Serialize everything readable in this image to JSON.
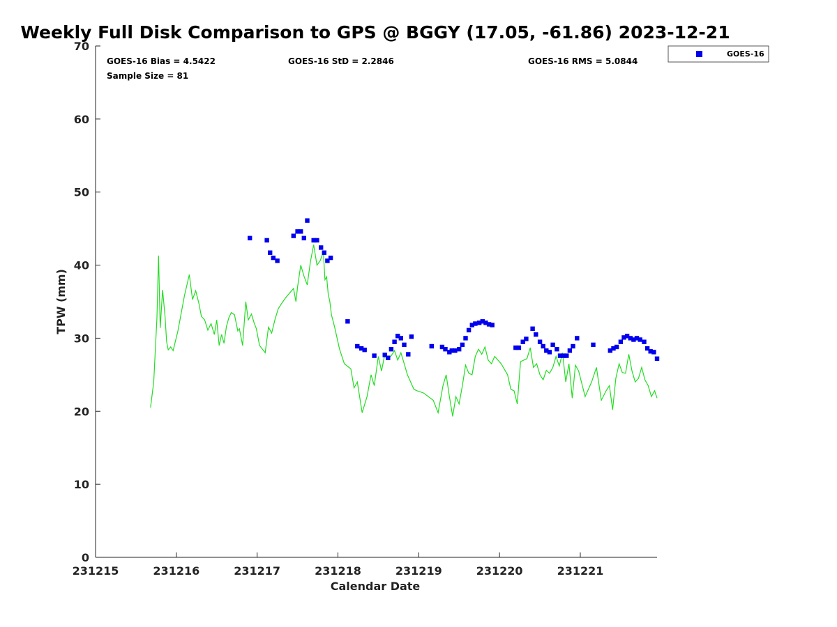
{
  "chart_data": {
    "type": "scatter",
    "title": "Weekly Full Disk Comparison to GPS @ BGGY (17.05, -61.86) 2023-12-21",
    "xlabel": "Calendar Date",
    "ylabel": "TPW (mm)",
    "xlim": [
      0,
      6.95
    ],
    "ylim": [
      0,
      70
    ],
    "x_unit": "days after 231215",
    "x_ticks": [
      {
        "value": 0,
        "label": "231215"
      },
      {
        "value": 1,
        "label": "231216"
      },
      {
        "value": 2,
        "label": "231217"
      },
      {
        "value": 3,
        "label": "231218"
      },
      {
        "value": 4,
        "label": "231219"
      },
      {
        "value": 5,
        "label": "231220"
      },
      {
        "value": 6,
        "label": "231221"
      }
    ],
    "y_ticks": [
      {
        "value": 0,
        "label": "0"
      },
      {
        "value": 10,
        "label": "10"
      },
      {
        "value": 20,
        "label": "20"
      },
      {
        "value": 30,
        "label": "30"
      },
      {
        "value": 40,
        "label": "40"
      },
      {
        "value": 50,
        "label": "50"
      },
      {
        "value": 60,
        "label": "60"
      },
      {
        "value": 70,
        "label": "70"
      }
    ],
    "grid": false,
    "legend_position": "outside-top-right",
    "stats": {
      "bias": "GOES-16 Bias = 4.5422",
      "std": "GOES-16 StD = 2.2846",
      "rms": "GOES-16 RMS = 5.0844",
      "sample": "Sample Size = 81"
    },
    "series": [
      {
        "name": "GOES-16",
        "kind": "scatter",
        "color": "#0000ee",
        "x": [
          1.91,
          2.12,
          2.16,
          2.2,
          2.25,
          2.45,
          2.5,
          2.54,
          2.58,
          2.62,
          2.7,
          2.74,
          2.79,
          2.83,
          2.87,
          2.91,
          3.12,
          3.24,
          3.29,
          3.33,
          3.45,
          3.58,
          3.62,
          3.66,
          3.7,
          3.74,
          3.78,
          3.82,
          3.87,
          3.91,
          4.16,
          4.29,
          4.33,
          4.38,
          4.41,
          4.45,
          4.5,
          4.54,
          4.58,
          4.62,
          4.66,
          4.7,
          4.75,
          4.79,
          4.83,
          4.87,
          4.91,
          5.2,
          5.24,
          5.29,
          5.33,
          5.41,
          5.45,
          5.5,
          5.54,
          5.58,
          5.62,
          5.66,
          5.71,
          5.75,
          5.79,
          5.83,
          5.87,
          5.91,
          5.96,
          6.16,
          6.37,
          6.41,
          6.45,
          6.5,
          6.54,
          6.58,
          6.62,
          6.66,
          6.7,
          6.74,
          6.79,
          6.83,
          6.87,
          6.91,
          6.95
        ],
        "y": [
          43.7,
          43.4,
          41.7,
          41.0,
          40.6,
          44.0,
          44.6,
          44.6,
          43.7,
          46.1,
          43.4,
          43.4,
          42.4,
          41.7,
          40.6,
          41.0,
          32.3,
          28.9,
          28.6,
          28.4,
          27.6,
          27.7,
          27.3,
          28.5,
          29.5,
          30.3,
          30.0,
          29.1,
          27.8,
          30.2,
          28.9,
          28.8,
          28.5,
          28.1,
          28.3,
          28.3,
          28.5,
          29.1,
          30.0,
          31.1,
          31.8,
          32.0,
          32.1,
          32.3,
          32.1,
          31.9,
          31.8,
          28.7,
          28.7,
          29.5,
          29.9,
          31.3,
          30.5,
          29.5,
          28.9,
          28.3,
          28.1,
          29.1,
          28.5,
          27.6,
          27.6,
          27.6,
          28.3,
          28.9,
          30.0,
          29.1,
          28.3,
          28.6,
          28.8,
          29.5,
          30.1,
          30.3,
          30.0,
          29.8,
          30.0,
          29.8,
          29.5,
          28.6,
          28.2,
          28.1,
          27.2
        ]
      },
      {
        "name": "",
        "kind": "line",
        "color": "#22dd22",
        "x": [
          0.68,
          0.72,
          0.76,
          0.78,
          0.8,
          0.83,
          0.86,
          0.88,
          0.9,
          0.93,
          0.96,
          0.98,
          1.02,
          1.1,
          1.16,
          1.2,
          1.24,
          1.28,
          1.31,
          1.35,
          1.39,
          1.43,
          1.47,
          1.5,
          1.53,
          1.56,
          1.59,
          1.62,
          1.65,
          1.68,
          1.72,
          1.76,
          1.78,
          1.82,
          1.86,
          1.89,
          1.93,
          1.96,
          1.99,
          2.03,
          2.1,
          2.14,
          2.18,
          2.22,
          2.26,
          2.3,
          2.35,
          2.45,
          2.48,
          2.5,
          2.54,
          2.58,
          2.62,
          2.66,
          2.7,
          2.74,
          2.78,
          2.82,
          2.84,
          2.86,
          2.88,
          2.9,
          2.92,
          2.96,
          3.02,
          3.08,
          3.16,
          3.2,
          3.24,
          3.3,
          3.36,
          3.41,
          3.45,
          3.5,
          3.54,
          3.58,
          3.62,
          3.66,
          3.7,
          3.74,
          3.78,
          3.82,
          3.86,
          3.9,
          3.94,
          3.98,
          4.06,
          4.18,
          4.24,
          4.3,
          4.34,
          4.38,
          4.42,
          4.46,
          4.5,
          4.54,
          4.58,
          4.62,
          4.66,
          4.7,
          4.74,
          4.78,
          4.82,
          4.86,
          4.9,
          4.94,
          5.02,
          5.1,
          5.14,
          5.18,
          5.22,
          5.26,
          5.3,
          5.34,
          5.38,
          5.42,
          5.46,
          5.5,
          5.54,
          5.58,
          5.62,
          5.66,
          5.7,
          5.74,
          5.78,
          5.82,
          5.86,
          5.9,
          5.94,
          5.98,
          6.06,
          6.14,
          6.2,
          6.26,
          6.32,
          6.36,
          6.4,
          6.44,
          6.48,
          6.52,
          6.56,
          6.6,
          6.64,
          6.68,
          6.72,
          6.76,
          6.8,
          6.84,
          6.88,
          6.92,
          6.95
        ],
        "y": [
          20.5,
          24.0,
          32.8,
          41.3,
          31.4,
          36.6,
          33.0,
          29.5,
          28.4,
          28.8,
          28.3,
          29.2,
          31.0,
          35.8,
          38.7,
          35.3,
          36.5,
          34.7,
          33.0,
          32.5,
          31.1,
          32.0,
          30.5,
          32.5,
          29.0,
          30.5,
          29.3,
          31.6,
          32.8,
          33.5,
          33.2,
          31.0,
          31.3,
          29.0,
          35.0,
          32.5,
          33.3,
          32.2,
          31.3,
          29.0,
          28.0,
          31.5,
          30.7,
          32.5,
          34.0,
          34.7,
          35.5,
          36.8,
          35.0,
          37.0,
          40.0,
          38.5,
          37.3,
          40.5,
          42.8,
          40.0,
          40.6,
          41.8,
          38.0,
          38.4,
          36.0,
          35.0,
          33.2,
          31.5,
          28.5,
          26.5,
          25.8,
          23.2,
          24.0,
          19.8,
          22.0,
          25.0,
          23.5,
          27.5,
          25.5,
          27.8,
          27.2,
          27.6,
          28.3,
          27.0,
          28.0,
          26.5,
          25.0,
          24.0,
          23.0,
          22.8,
          22.5,
          21.5,
          19.8,
          23.5,
          25.0,
          22.0,
          19.3,
          22.0,
          21.0,
          23.5,
          26.3,
          25.2,
          25.0,
          27.5,
          28.5,
          27.8,
          28.8,
          27.0,
          26.5,
          27.5,
          26.5,
          25.0,
          23.0,
          22.8,
          21.0,
          26.8,
          27.0,
          27.2,
          28.7,
          26.0,
          26.5,
          25.0,
          24.3,
          25.6,
          25.2,
          26.0,
          27.5,
          26.2,
          28.0,
          24.0,
          26.5,
          21.8,
          26.3,
          25.5,
          22.0,
          24.0,
          26.0,
          21.5,
          22.8,
          23.5,
          20.2,
          24.5,
          26.5,
          25.3,
          25.2,
          27.8,
          25.5,
          24.0,
          24.5,
          26.0,
          24.3,
          23.5,
          22.0,
          22.8,
          21.8
        ]
      }
    ]
  }
}
